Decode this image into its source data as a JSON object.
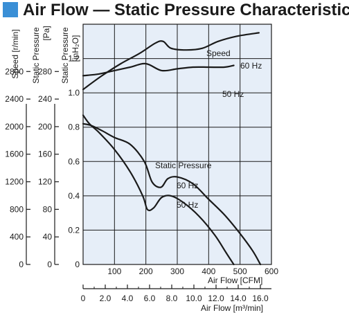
{
  "colors": {
    "accent": "#3a8fd6",
    "plot_bg": "#e6eef8",
    "grid": "#1a1a1a",
    "curve": "#1a1a1a"
  },
  "chart_data": {
    "type": "line",
    "title": "Air Flow — Static Pressure Characteristics",
    "speed_axis": {
      "label": "Speed [r/min]",
      "ticks": [
        "2800",
        "2400",
        "2000",
        "1600",
        "1200",
        "800",
        "400",
        "0"
      ]
    },
    "pressure_pa_axis": {
      "label_line1": "Static Pressure",
      "label_line2": "[Pa]",
      "ticks": [
        "280",
        "240",
        "200",
        "160",
        "120",
        "80",
        "40",
        "0"
      ]
    },
    "pressure_inh2o_axis": {
      "label_line1": "Static Pressure",
      "label_line2": "[inH₂O]",
      "ticks": [
        "1.2",
        "1.0",
        "0.8",
        "0.6",
        "0.4",
        "0.2",
        "0"
      ],
      "ylim": [
        0,
        1.4
      ]
    },
    "x_cfm_axis": {
      "label": "Air Flow [CFM]",
      "ticks": [
        "100",
        "200",
        "300",
        "400",
        "500",
        "600"
      ],
      "xlim": [
        0,
        600
      ]
    },
    "x_m3_axis": {
      "label": "Air Flow [m³/min]",
      "ticks": [
        "0",
        "2.0",
        "4.0",
        "6.0",
        "8.0",
        "10.0",
        "12.0",
        "14.0",
        "16.0"
      ],
      "xlim": [
        0,
        17
      ]
    },
    "annotations": {
      "speed": "Speed",
      "static_pressure": "Static Pressure",
      "hz60_speed": "60 Hz",
      "hz50_speed": "50 Hz",
      "hz60_pressure": "60 Hz",
      "hz50_pressure": "50 Hz"
    },
    "series": [
      {
        "group": "speed",
        "label": "60 Hz",
        "x_cfm": [
          0,
          60,
          120,
          180,
          230,
          255,
          280,
          330,
          380,
          430,
          490,
          560
        ],
        "y_inh2o": [
          1.02,
          1.1,
          1.17,
          1.23,
          1.29,
          1.3,
          1.26,
          1.25,
          1.26,
          1.3,
          1.33,
          1.35
        ]
      },
      {
        "group": "speed",
        "label": "50 Hz",
        "x_cfm": [
          0,
          50,
          100,
          150,
          200,
          250,
          300,
          350,
          400,
          450,
          480
        ],
        "y_inh2o": [
          1.1,
          1.11,
          1.13,
          1.15,
          1.17,
          1.13,
          1.14,
          1.15,
          1.15,
          1.15,
          1.16
        ]
      },
      {
        "group": "pressure",
        "label": "60 Hz",
        "x_cfm": [
          0,
          25,
          60,
          100,
          150,
          195,
          220,
          248,
          270,
          300,
          350,
          400,
          450,
          500,
          540,
          565
        ],
        "y_inh2o": [
          0.82,
          0.81,
          0.78,
          0.74,
          0.7,
          0.6,
          0.48,
          0.45,
          0.5,
          0.51,
          0.47,
          0.38,
          0.29,
          0.18,
          0.08,
          0.0
        ]
      },
      {
        "group": "pressure",
        "label": "50 Hz",
        "x_cfm": [
          0,
          20,
          50,
          100,
          150,
          190,
          205,
          225,
          250,
          280,
          320,
          370,
          420,
          455,
          480
        ],
        "y_inh2o": [
          0.87,
          0.82,
          0.77,
          0.67,
          0.54,
          0.4,
          0.32,
          0.33,
          0.39,
          0.4,
          0.36,
          0.28,
          0.17,
          0.07,
          0.0
        ]
      }
    ]
  }
}
